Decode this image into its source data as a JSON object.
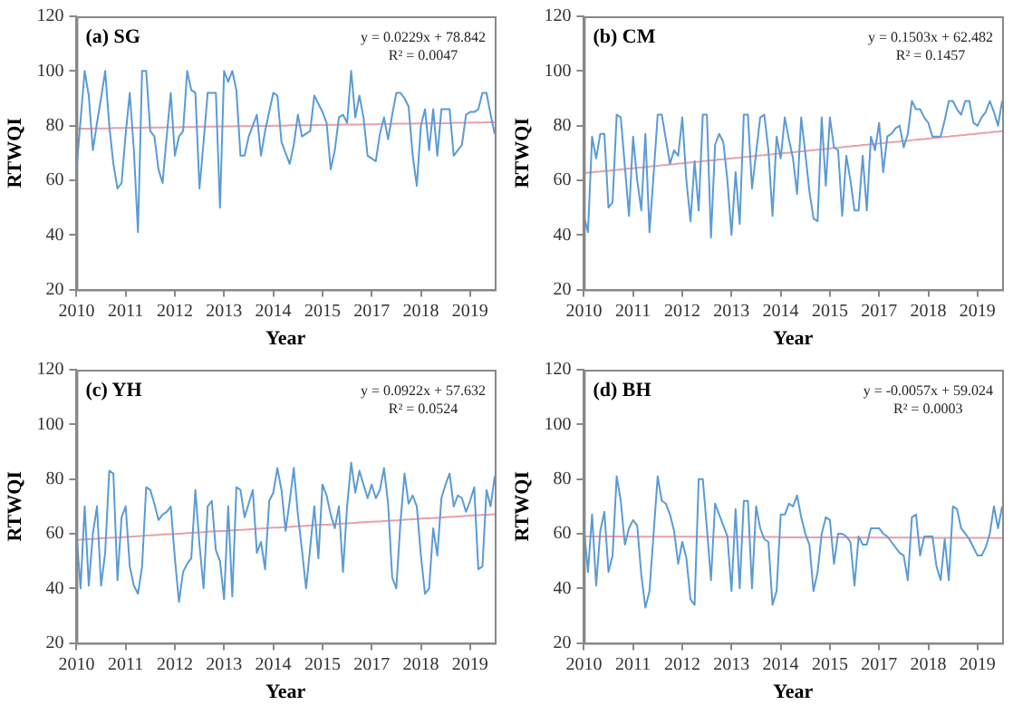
{
  "chart_data": [
    {
      "type": "line",
      "title": "(a) SG",
      "xlabel": "Year",
      "ylabel": "RTWQI",
      "annotations": [
        "y = 0.0229x + 78.842",
        "R² = 0.0047"
      ],
      "ylim": [
        20,
        120
      ],
      "yticks": [
        20,
        40,
        60,
        80,
        100,
        120
      ],
      "grid": false,
      "legend": false,
      "categories": [
        "2010",
        null,
        null,
        null,
        null,
        null,
        null,
        null,
        null,
        null,
        null,
        null,
        "2011",
        null,
        null,
        null,
        null,
        null,
        null,
        null,
        null,
        null,
        null,
        null,
        "2012",
        null,
        null,
        null,
        null,
        null,
        null,
        null,
        null,
        null,
        null,
        null,
        "2013",
        null,
        null,
        null,
        null,
        null,
        null,
        null,
        null,
        null,
        null,
        null,
        "2014",
        null,
        null,
        null,
        null,
        null,
        null,
        null,
        null,
        null,
        null,
        null,
        "2015",
        null,
        null,
        null,
        null,
        null,
        null,
        null,
        null,
        null,
        null,
        null,
        "2017",
        null,
        null,
        null,
        null,
        null,
        null,
        null,
        null,
        null,
        null,
        null,
        "2018",
        null,
        null,
        null,
        null,
        null,
        null,
        null,
        null,
        null,
        null,
        null,
        "2019",
        null,
        null,
        null,
        null,
        null,
        null
      ],
      "series": [
        {
          "color": "#5b9bd5",
          "values": [
            64,
            82,
            100,
            91,
            71,
            81,
            90,
            100,
            80,
            66,
            57,
            59,
            77,
            92,
            71,
            41,
            100,
            100,
            78,
            76,
            64,
            59,
            76,
            92,
            69,
            76,
            78,
            100,
            93,
            92,
            57,
            74,
            92,
            92,
            92,
            50,
            100,
            96,
            100,
            93,
            69,
            69,
            76,
            80,
            84,
            69,
            78,
            85,
            92,
            91,
            74,
            70,
            66,
            73,
            84,
            76,
            77,
            78,
            91,
            88,
            85,
            81,
            64,
            71,
            83,
            84,
            81,
            100,
            83,
            91,
            83,
            69,
            68,
            67,
            77,
            83,
            75,
            84,
            92,
            92,
            90,
            87,
            69,
            58,
            80,
            86,
            71,
            86,
            69,
            86,
            86,
            86,
            69,
            71,
            73,
            84,
            85,
            85,
            86,
            92,
            92,
            84,
            77
          ]
        },
        {
          "type": "line",
          "color": "#e8a0a8",
          "values": [
            78.9,
            78.9,
            78.9,
            78.9,
            79.0,
            79.0,
            79.0,
            79.0,
            79.0,
            79.1,
            79.1,
            79.1,
            79.1,
            79.2,
            79.2,
            79.2,
            79.2,
            79.3,
            79.3,
            79.3,
            79.3,
            79.3,
            79.4,
            79.4,
            79.4,
            79.4,
            79.5,
            79.5,
            79.5,
            79.5,
            79.6,
            79.6,
            79.6,
            79.6,
            79.6,
            79.7,
            79.7,
            79.7,
            79.7,
            79.8,
            79.8,
            79.8,
            79.8,
            79.8,
            79.9,
            79.9,
            79.9,
            79.9,
            80.0,
            80.0,
            80.0,
            80.0,
            80.1,
            80.1,
            80.1,
            80.1,
            80.1,
            80.2,
            80.2,
            80.2,
            80.2,
            80.3,
            80.3,
            80.3,
            80.3,
            80.4,
            80.4,
            80.4,
            80.4,
            80.4,
            80.5,
            80.5,
            80.5,
            80.5,
            80.6,
            80.6,
            80.6,
            80.6,
            80.7,
            80.7,
            80.7,
            80.7,
            80.7,
            80.8,
            80.8,
            80.8,
            80.8,
            80.9,
            80.9,
            80.9,
            80.9,
            80.9,
            81.0,
            81.0,
            81.0,
            81.0,
            81.1,
            81.1,
            81.1,
            81.1,
            81.2,
            81.2,
            81.2
          ]
        }
      ]
    },
    {
      "type": "line",
      "title": "(b) CM",
      "xlabel": "Year",
      "ylabel": "RTWQI",
      "annotations": [
        "y = 0.1503x + 62.482",
        "R² = 0.1457"
      ],
      "ylim": [
        20,
        120
      ],
      "yticks": [
        20,
        40,
        60,
        80,
        100,
        120
      ],
      "grid": false,
      "legend": false,
      "categories": [
        "2010",
        null,
        null,
        null,
        null,
        null,
        null,
        null,
        null,
        null,
        null,
        null,
        "2011",
        null,
        null,
        null,
        null,
        null,
        null,
        null,
        null,
        null,
        null,
        null,
        "2012",
        null,
        null,
        null,
        null,
        null,
        null,
        null,
        null,
        null,
        null,
        null,
        "2013",
        null,
        null,
        null,
        null,
        null,
        null,
        null,
        null,
        null,
        null,
        null,
        "2014",
        null,
        null,
        null,
        null,
        null,
        null,
        null,
        null,
        null,
        null,
        null,
        "2015",
        null,
        null,
        null,
        null,
        null,
        null,
        null,
        null,
        null,
        null,
        null,
        "2017",
        null,
        null,
        null,
        null,
        null,
        null,
        null,
        null,
        null,
        null,
        null,
        "2018",
        null,
        null,
        null,
        null,
        null,
        null,
        null,
        null,
        null,
        null,
        null,
        "2019",
        null,
        null,
        null,
        null,
        null,
        null
      ],
      "series": [
        {
          "color": "#5b9bd5",
          "values": [
            47,
            41,
            76,
            68,
            77,
            77,
            50,
            52,
            84,
            83,
            65,
            47,
            76,
            60,
            49,
            77,
            41,
            62,
            84,
            84,
            75,
            66,
            71,
            69,
            83,
            60,
            45,
            67,
            49,
            84,
            84,
            39,
            73,
            77,
            74,
            60,
            40,
            63,
            44,
            84,
            84,
            57,
            70,
            83,
            84,
            71,
            47,
            76,
            68,
            83,
            75,
            68,
            55,
            83,
            70,
            56,
            46,
            45,
            83,
            58,
            83,
            72,
            71,
            47,
            69,
            60,
            49,
            49,
            69,
            49,
            76,
            71,
            81,
            63,
            76,
            77,
            79,
            80,
            72,
            77,
            89,
            86,
            86,
            83,
            81,
            76,
            76,
            76,
            82,
            89,
            89,
            86,
            84,
            89,
            89,
            81,
            80,
            83,
            85,
            89,
            85,
            80,
            89
          ]
        },
        {
          "type": "line",
          "color": "#e8a0a8",
          "values": [
            62.6,
            62.8,
            62.9,
            63.1,
            63.2,
            63.4,
            63.5,
            63.7,
            63.8,
            64.0,
            64.1,
            64.3,
            64.4,
            64.6,
            64.7,
            64.9,
            65.0,
            65.2,
            65.3,
            65.5,
            65.6,
            65.8,
            65.9,
            66.1,
            66.2,
            66.4,
            66.5,
            66.7,
            66.8,
            67.0,
            67.1,
            67.3,
            67.4,
            67.6,
            67.7,
            67.9,
            68.0,
            68.2,
            68.3,
            68.5,
            68.6,
            68.8,
            68.9,
            69.1,
            69.2,
            69.4,
            69.5,
            69.7,
            69.8,
            70.0,
            70.1,
            70.3,
            70.4,
            70.6,
            70.7,
            70.9,
            71.0,
            71.2,
            71.3,
            71.5,
            71.7,
            71.8,
            72.0,
            72.1,
            72.3,
            72.4,
            72.6,
            72.7,
            72.9,
            73.0,
            73.2,
            73.3,
            73.5,
            73.6,
            73.8,
            73.9,
            74.1,
            74.2,
            74.4,
            74.5,
            74.7,
            74.8,
            75.0,
            75.1,
            75.3,
            75.4,
            75.6,
            75.7,
            75.9,
            76.0,
            76.2,
            76.3,
            76.5,
            76.6,
            76.8,
            76.9,
            77.1,
            77.2,
            77.4,
            77.5,
            77.7,
            77.8,
            78.0
          ]
        }
      ]
    },
    {
      "type": "line",
      "title": "(c) YH",
      "xlabel": "Year",
      "ylabel": "RTWQI",
      "annotations": [
        "y = 0.0922x + 57.632",
        "R² = 0.0524"
      ],
      "ylim": [
        20,
        120
      ],
      "yticks": [
        20,
        40,
        60,
        80,
        100,
        120
      ],
      "grid": false,
      "legend": false,
      "categories": [
        "2010",
        null,
        null,
        null,
        null,
        null,
        null,
        null,
        null,
        null,
        null,
        null,
        "2011",
        null,
        null,
        null,
        null,
        null,
        null,
        null,
        null,
        null,
        null,
        null,
        "2012",
        null,
        null,
        null,
        null,
        null,
        null,
        null,
        null,
        null,
        null,
        null,
        "2013",
        null,
        null,
        null,
        null,
        null,
        null,
        null,
        null,
        null,
        null,
        null,
        "2014",
        null,
        null,
        null,
        null,
        null,
        null,
        null,
        null,
        null,
        null,
        null,
        "2015",
        null,
        null,
        null,
        null,
        null,
        null,
        null,
        null,
        null,
        null,
        null,
        "2017",
        null,
        null,
        null,
        null,
        null,
        null,
        null,
        null,
        null,
        null,
        null,
        "2018",
        null,
        null,
        null,
        null,
        null,
        null,
        null,
        null,
        null,
        null,
        null,
        "2019",
        null,
        null,
        null,
        null,
        null,
        null
      ],
      "series": [
        {
          "color": "#5b9bd5",
          "values": [
            60,
            40,
            70,
            41,
            60,
            70,
            41,
            53,
            83,
            82,
            43,
            66,
            70,
            48,
            41,
            38,
            48,
            77,
            76,
            71,
            65,
            67,
            68,
            70,
            51,
            35,
            46,
            49,
            51,
            76,
            56,
            40,
            70,
            72,
            54,
            50,
            36,
            70,
            37,
            77,
            76,
            66,
            71,
            76,
            53,
            57,
            47,
            72,
            75,
            84,
            76,
            61,
            72,
            84,
            67,
            54,
            40,
            55,
            70,
            51,
            78,
            74,
            67,
            62,
            70,
            46,
            70,
            86,
            75,
            83,
            78,
            73,
            78,
            73,
            76,
            84,
            71,
            44,
            40,
            64,
            82,
            71,
            74,
            70,
            52,
            38,
            40,
            62,
            52,
            73,
            78,
            82,
            70,
            74,
            73,
            68,
            72,
            77,
            47,
            48,
            76,
            70,
            81
          ]
        },
        {
          "type": "line",
          "color": "#e8a0a8",
          "values": [
            57.7,
            57.8,
            57.9,
            58.0,
            58.1,
            58.2,
            58.3,
            58.4,
            58.5,
            58.6,
            58.6,
            58.7,
            58.8,
            58.9,
            59.0,
            59.1,
            59.2,
            59.3,
            59.4,
            59.5,
            59.6,
            59.7,
            59.8,
            59.8,
            59.9,
            60.0,
            60.1,
            60.2,
            60.3,
            60.4,
            60.5,
            60.6,
            60.7,
            60.8,
            60.9,
            61.0,
            61.0,
            61.1,
            61.2,
            61.3,
            61.4,
            61.5,
            61.6,
            61.7,
            61.8,
            61.9,
            62.0,
            62.1,
            62.2,
            62.2,
            62.3,
            62.4,
            62.5,
            62.6,
            62.7,
            62.8,
            62.9,
            63.0,
            63.1,
            63.2,
            63.3,
            63.3,
            63.4,
            63.5,
            63.6,
            63.7,
            63.8,
            63.9,
            64.0,
            64.1,
            64.2,
            64.3,
            64.4,
            64.5,
            64.5,
            64.6,
            64.7,
            64.8,
            64.9,
            65.0,
            65.1,
            65.2,
            65.3,
            65.4,
            65.5,
            65.6,
            65.7,
            65.7,
            65.8,
            65.9,
            66.0,
            66.1,
            66.2,
            66.3,
            66.4,
            66.5,
            66.6,
            66.7,
            66.8,
            66.9,
            66.9,
            67.0,
            67.1
          ]
        }
      ]
    },
    {
      "type": "line",
      "title": "(d) BH",
      "xlabel": "Year",
      "ylabel": "RTWQI",
      "annotations": [
        "y = -0.0057x + 59.024",
        "R² = 0.0003"
      ],
      "ylim": [
        20,
        120
      ],
      "yticks": [
        20,
        40,
        60,
        80,
        100,
        120
      ],
      "grid": false,
      "legend": false,
      "categories": [
        "2010",
        null,
        null,
        null,
        null,
        null,
        null,
        null,
        null,
        null,
        null,
        null,
        "2011",
        null,
        null,
        null,
        null,
        null,
        null,
        null,
        null,
        null,
        null,
        null,
        "2012",
        null,
        null,
        null,
        null,
        null,
        null,
        null,
        null,
        null,
        null,
        null,
        "2013",
        null,
        null,
        null,
        null,
        null,
        null,
        null,
        null,
        null,
        null,
        null,
        "2014",
        null,
        null,
        null,
        null,
        null,
        null,
        null,
        null,
        null,
        null,
        null,
        "2015",
        null,
        null,
        null,
        null,
        null,
        null,
        null,
        null,
        null,
        null,
        null,
        "2017",
        null,
        null,
        null,
        null,
        null,
        null,
        null,
        null,
        null,
        null,
        null,
        "2018",
        null,
        null,
        null,
        null,
        null,
        null,
        null,
        null,
        null,
        null,
        null,
        "2019",
        null,
        null,
        null,
        null,
        null,
        null
      ],
      "series": [
        {
          "color": "#5b9bd5",
          "values": [
            62,
            46,
            67,
            41,
            61,
            68,
            46,
            52,
            81,
            72,
            56,
            62,
            65,
            63,
            45,
            33,
            39,
            60,
            81,
            72,
            71,
            67,
            61,
            49,
            57,
            51,
            36,
            34,
            80,
            80,
            62,
            43,
            71,
            67,
            63,
            59,
            39,
            69,
            40,
            72,
            72,
            40,
            70,
            62,
            58,
            57,
            34,
            39,
            67,
            67,
            71,
            70,
            74,
            66,
            60,
            56,
            39,
            46,
            60,
            66,
            65,
            49,
            60,
            60,
            59,
            57,
            41,
            59,
            56,
            56,
            62,
            62,
            62,
            60,
            59,
            57,
            55,
            53,
            52,
            43,
            66,
            67,
            52,
            59,
            59,
            59,
            48,
            43,
            58,
            43,
            70,
            69,
            62,
            60,
            58,
            55,
            52,
            52,
            55,
            60,
            70,
            62,
            70
          ]
        },
        {
          "type": "line",
          "color": "#e8a0a8",
          "values": [
            59.0,
            59.0,
            59.0,
            59.0,
            59.0,
            59.0,
            59.0,
            59.0,
            59.0,
            59.0,
            59.0,
            59.0,
            58.9,
            58.9,
            58.9,
            58.9,
            58.9,
            58.9,
            58.9,
            58.9,
            58.9,
            58.9,
            58.9,
            58.9,
            58.9,
            58.9,
            58.9,
            58.9,
            58.9,
            58.9,
            58.8,
            58.8,
            58.8,
            58.8,
            58.8,
            58.8,
            58.8,
            58.8,
            58.8,
            58.8,
            58.8,
            58.8,
            58.8,
            58.8,
            58.8,
            58.8,
            58.8,
            58.8,
            58.7,
            58.7,
            58.7,
            58.7,
            58.7,
            58.7,
            58.7,
            58.7,
            58.7,
            58.7,
            58.7,
            58.7,
            58.7,
            58.7,
            58.7,
            58.7,
            58.7,
            58.6,
            58.6,
            58.6,
            58.6,
            58.6,
            58.6,
            58.6,
            58.6,
            58.6,
            58.6,
            58.6,
            58.6,
            58.6,
            58.6,
            58.6,
            58.6,
            58.6,
            58.6,
            58.5,
            58.5,
            58.5,
            58.5,
            58.5,
            58.5,
            58.5,
            58.5,
            58.5,
            58.5,
            58.5,
            58.5,
            58.5,
            58.5,
            58.5,
            58.5,
            58.5,
            58.4,
            58.4,
            58.4
          ]
        }
      ]
    }
  ]
}
